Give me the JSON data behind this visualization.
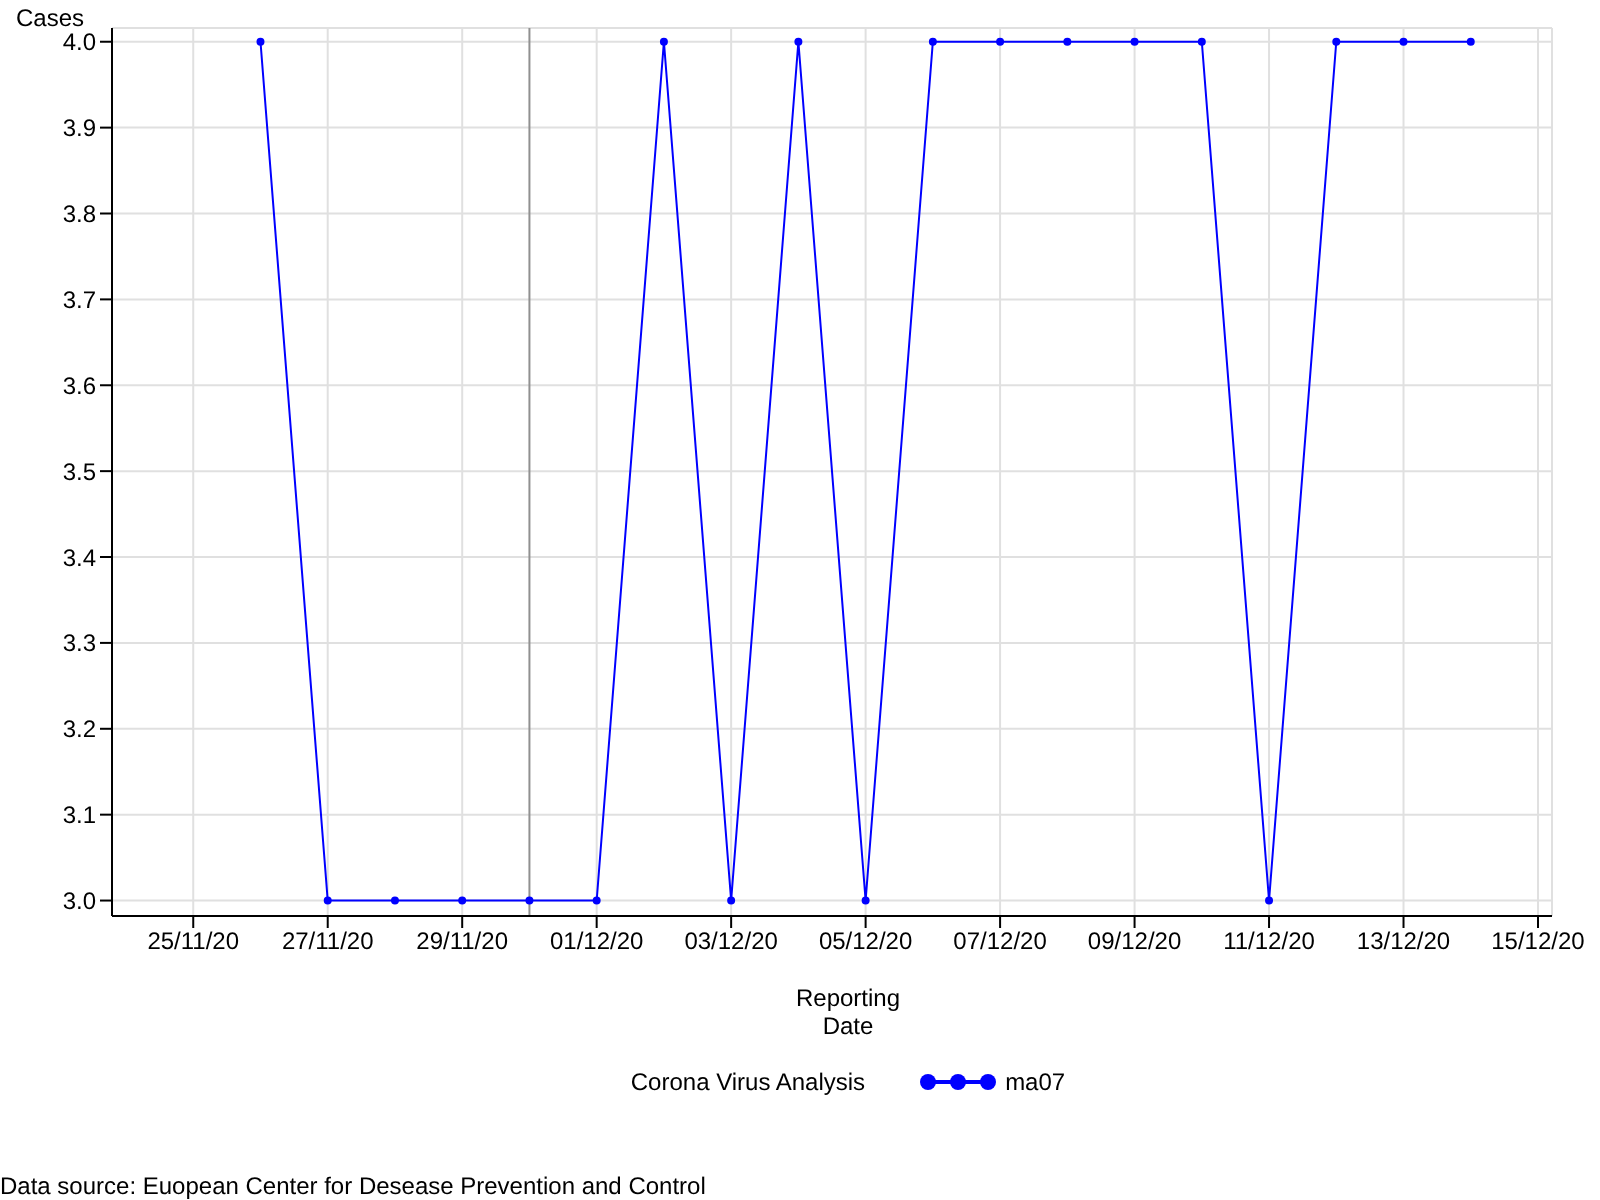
{
  "chart_data": {
    "type": "line",
    "ylabel": "Cases",
    "xlabel": "Reporting\nDate",
    "legend_title": "Corona Virus Analysis",
    "x": [
      "--11-26",
      "--11-27",
      "--11-28",
      "--11-29",
      "--11-30",
      "--12-01",
      "--12-02",
      "--12-03",
      "--12-04",
      "--12-05",
      "--12-06",
      "--12-07",
      "--12-08",
      "--12-09",
      "--12-10",
      "--12-11",
      "--12-12",
      "--12-13",
      "--12-14"
    ],
    "series": [
      {
        "name": "ma07",
        "color": "#0000ff",
        "values": [
          4,
          3,
          3,
          3,
          3,
          3,
          4,
          3,
          4,
          3,
          4,
          4,
          4,
          4,
          4,
          3,
          4,
          4,
          4
        ]
      }
    ],
    "xlim": [
      "--11-23T19:00",
      "--12-15T05:00"
    ],
    "xticks": [
      {
        "value": "--11-25",
        "label": "25/11/20"
      },
      {
        "value": "--11-27",
        "label": "27/11/20"
      },
      {
        "value": "--11-29",
        "label": "29/11/20"
      },
      {
        "value": "--12-01",
        "label": "01/12/20"
      },
      {
        "value": "--12-03",
        "label": "03/12/20"
      },
      {
        "value": "--12-05",
        "label": "05/12/20"
      },
      {
        "value": "--12-07",
        "label": "07/12/20"
      },
      {
        "value": "--12-09",
        "label": "09/12/20"
      },
      {
        "value": "--12-11",
        "label": "11/12/20"
      },
      {
        "value": "--12-13",
        "label": "13/12/20"
      },
      {
        "value": "--12-15",
        "label": "15/12/20"
      }
    ],
    "ylim": [
      2.982,
      4.016
    ],
    "yticks": [
      {
        "value": 3,
        "label": "3.0"
      },
      3.1,
      3.2,
      3.3,
      3.4,
      3.5,
      3.6,
      3.7,
      3.8,
      3.9,
      {
        "value": 4,
        "label": "4.0"
      }
    ],
    "ref_lines": [
      {
        "axis": "x",
        "value": "--11-30",
        "color": "#909090"
      }
    ],
    "grid": true,
    "legend": "bottom",
    "marker": "circle",
    "line_style": "solid",
    "annotations": [
      "Data source: Euopean Center for Desease Prevention and Control"
    ]
  }
}
